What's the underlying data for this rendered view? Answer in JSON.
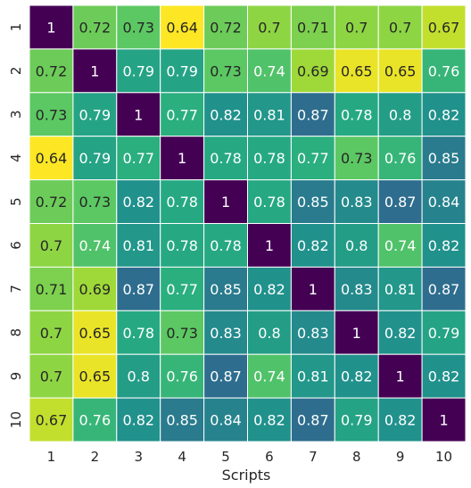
{
  "chart_data": {
    "type": "heatmap",
    "title": "",
    "xlabel": "Scripts",
    "ylabel": "",
    "x_categories": [
      "1",
      "2",
      "3",
      "4",
      "5",
      "6",
      "7",
      "8",
      "9",
      "10"
    ],
    "y_categories": [
      "1",
      "2",
      "3",
      "4",
      "5",
      "6",
      "7",
      "8",
      "9",
      "10"
    ],
    "colormap": "viridis_r",
    "value_range": [
      0.64,
      1.0
    ],
    "grid": false,
    "legend": "none",
    "values": [
      [
        1,
        0.72,
        0.73,
        0.64,
        0.72,
        0.7,
        0.71,
        0.7,
        0.7,
        0.67
      ],
      [
        0.72,
        1,
        0.79,
        0.79,
        0.73,
        0.74,
        0.69,
        0.65,
        0.65,
        0.76
      ],
      [
        0.73,
        0.79,
        1,
        0.77,
        0.82,
        0.81,
        0.87,
        0.78,
        0.8,
        0.82
      ],
      [
        0.64,
        0.79,
        0.77,
        1,
        0.78,
        0.78,
        0.77,
        0.73,
        0.76,
        0.85
      ],
      [
        0.72,
        0.73,
        0.82,
        0.78,
        1,
        0.78,
        0.85,
        0.83,
        0.87,
        0.84
      ],
      [
        0.7,
        0.74,
        0.81,
        0.78,
        0.78,
        1,
        0.82,
        0.8,
        0.74,
        0.82
      ],
      [
        0.71,
        0.69,
        0.87,
        0.77,
        0.85,
        0.82,
        1,
        0.83,
        0.81,
        0.87
      ],
      [
        0.7,
        0.65,
        0.78,
        0.73,
        0.83,
        0.8,
        0.83,
        1,
        0.82,
        0.79
      ],
      [
        0.7,
        0.65,
        0.8,
        0.76,
        0.87,
        0.74,
        0.81,
        0.82,
        1,
        0.82
      ],
      [
        0.67,
        0.76,
        0.82,
        0.85,
        0.84,
        0.82,
        0.87,
        0.79,
        0.82,
        1
      ]
    ]
  }
}
